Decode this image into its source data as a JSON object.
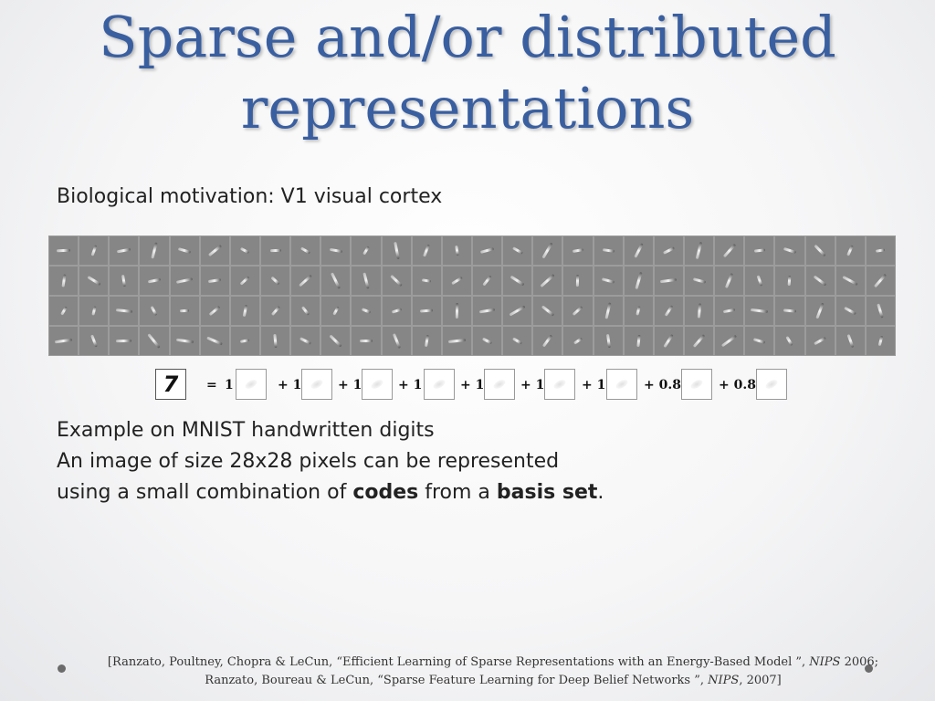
{
  "slide": {
    "title_line1": "Sparse and/or distributed",
    "title_line2": "representations",
    "subtitle": "Biological motivation: V1 visual cortex"
  },
  "basis_grid": {
    "rows": 4,
    "cols": 28
  },
  "equation": {
    "target": "7",
    "equals": "=",
    "terms": [
      {
        "coef": "1"
      },
      {
        "coef": "+ 1"
      },
      {
        "coef": "+ 1"
      },
      {
        "coef": "+ 1"
      },
      {
        "coef": "+ 1"
      },
      {
        "coef": "+ 1"
      },
      {
        "coef": "+ 1"
      },
      {
        "coef": "+ 0.8"
      },
      {
        "coef": "+ 0.8"
      }
    ]
  },
  "body": {
    "line1": "Example on MNIST handwritten digits",
    "line2": "An image of size 28x28 pixels can be represented",
    "line3_pre": "using a small combination of ",
    "line3_bold1": "codes",
    "line3_mid": " from a ",
    "line3_bold2": "basis set",
    "line3_post": "."
  },
  "citation": {
    "line1_pre": "[Ranzato, Poultney, Chopra & LeCun, “Efficient Learning of Sparse Representations with an Energy-Based Model ”, ",
    "line1_venue": "NIPS",
    "line1_post": " 2006;",
    "line2_pre": "Ranzato, Boureau & LeCun, “Sparse Feature Learning for Deep Belief Networks ”, ",
    "line2_venue": "NIPS",
    "line2_post": ", 2007]"
  }
}
